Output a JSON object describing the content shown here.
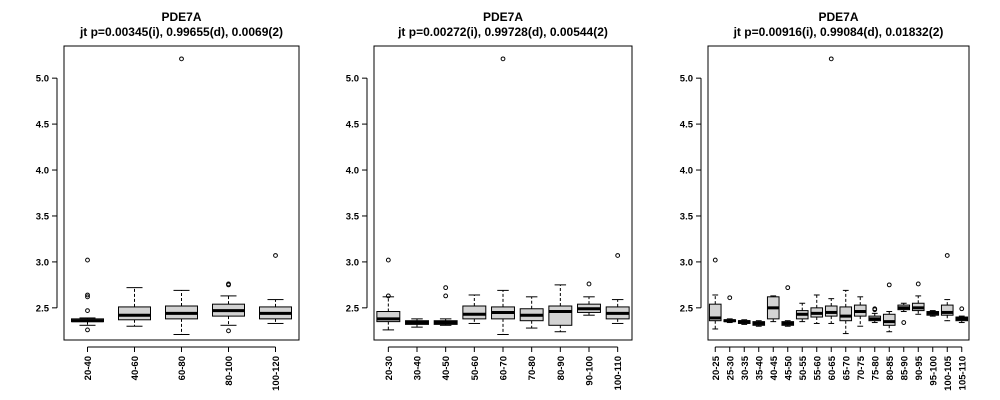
{
  "chart_data": [
    {
      "type": "box",
      "title": "PDE7A",
      "subtitle": "jt p=0.00345(i), 0.99655(d), 0.0069(2)",
      "ylim": [
        2.15,
        5.35
      ],
      "yticks": [
        "2.5",
        "3.0",
        "3.5",
        "4.0",
        "4.5",
        "5.0"
      ],
      "categories": [
        "20-40",
        "40-60",
        "60-80",
        "80-100",
        "100-120"
      ],
      "boxes": [
        {
          "whisker_low": 2.31,
          "q1": 2.35,
          "median": 2.36,
          "q3": 2.38,
          "whisker_high": 2.39,
          "outliers": [
            3.02,
            2.64,
            2.62,
            2.47,
            2.26
          ]
        },
        {
          "whisker_low": 2.3,
          "q1": 2.37,
          "median": 2.42,
          "q3": 2.51,
          "whisker_high": 2.72,
          "outliers": []
        },
        {
          "whisker_low": 2.21,
          "q1": 2.38,
          "median": 2.44,
          "q3": 2.52,
          "whisker_high": 2.69,
          "outliers": [
            5.21
          ]
        },
        {
          "whisker_low": 2.31,
          "q1": 2.41,
          "median": 2.47,
          "q3": 2.54,
          "whisker_high": 2.63,
          "outliers": [
            2.76,
            2.75,
            2.25
          ]
        },
        {
          "whisker_low": 2.33,
          "q1": 2.38,
          "median": 2.44,
          "q3": 2.51,
          "whisker_high": 2.59,
          "outliers": [
            3.07
          ]
        }
      ]
    },
    {
      "type": "box",
      "title": "PDE7A",
      "subtitle": "jt p=0.00272(i), 0.99728(d), 0.00544(2)",
      "ylim": [
        2.15,
        5.35
      ],
      "yticks": [
        "2.5",
        "3.0",
        "3.5",
        "4.0",
        "4.5",
        "5.0"
      ],
      "categories": [
        "20-30",
        "30-40",
        "40-50",
        "50-60",
        "60-70",
        "70-80",
        "80-90",
        "90-100",
        "100-110"
      ],
      "boxes": [
        {
          "whisker_low": 2.26,
          "q1": 2.35,
          "median": 2.38,
          "q3": 2.46,
          "whisker_high": 2.62,
          "outliers": [
            3.02,
            2.63
          ]
        },
        {
          "whisker_low": 2.29,
          "q1": 2.32,
          "median": 2.34,
          "q3": 2.36,
          "whisker_high": 2.38,
          "outliers": []
        },
        {
          "whisker_low": 2.31,
          "q1": 2.32,
          "median": 2.34,
          "q3": 2.36,
          "whisker_high": 2.38,
          "outliers": [
            2.72,
            2.63
          ]
        },
        {
          "whisker_low": 2.33,
          "q1": 2.38,
          "median": 2.43,
          "q3": 2.52,
          "whisker_high": 2.64,
          "outliers": []
        },
        {
          "whisker_low": 2.21,
          "q1": 2.38,
          "median": 2.45,
          "q3": 2.51,
          "whisker_high": 2.69,
          "outliers": [
            5.21
          ]
        },
        {
          "whisker_low": 2.28,
          "q1": 2.36,
          "median": 2.42,
          "q3": 2.49,
          "whisker_high": 2.62,
          "outliers": []
        },
        {
          "whisker_low": 2.24,
          "q1": 2.31,
          "median": 2.46,
          "q3": 2.52,
          "whisker_high": 2.75,
          "outliers": []
        },
        {
          "whisker_low": 2.42,
          "q1": 2.45,
          "median": 2.49,
          "q3": 2.54,
          "whisker_high": 2.62,
          "outliers": [
            2.76
          ]
        },
        {
          "whisker_low": 2.33,
          "q1": 2.38,
          "median": 2.44,
          "q3": 2.51,
          "whisker_high": 2.59,
          "outliers": [
            3.07
          ]
        }
      ]
    },
    {
      "type": "box",
      "title": "PDE7A",
      "subtitle": "jt p=0.00916(i), 0.99084(d), 0.01832(2)",
      "ylim": [
        2.15,
        5.35
      ],
      "yticks": [
        "2.5",
        "3.0",
        "3.5",
        "4.0",
        "4.5",
        "5.0"
      ],
      "categories": [
        "20-25",
        "25-30",
        "30-35",
        "35-40",
        "40-45",
        "45-50",
        "50-55",
        "55-60",
        "60-65",
        "65-70",
        "70-75",
        "75-80",
        "80-85",
        "85-90",
        "90-95",
        "95-100",
        "100-105",
        "105-110"
      ],
      "boxes": [
        {
          "whisker_low": 2.27,
          "q1": 2.36,
          "median": 2.39,
          "q3": 2.54,
          "whisker_high": 2.64,
          "outliers": [
            3.02
          ]
        },
        {
          "whisker_low": 2.34,
          "q1": 2.35,
          "median": 2.36,
          "q3": 2.37,
          "whisker_high": 2.38,
          "outliers": [
            2.61
          ]
        },
        {
          "whisker_low": 2.32,
          "q1": 2.33,
          "median": 2.35,
          "q3": 2.36,
          "whisker_high": 2.37,
          "outliers": []
        },
        {
          "whisker_low": 2.3,
          "q1": 2.31,
          "median": 2.33,
          "q3": 2.35,
          "whisker_high": 2.36,
          "outliers": []
        },
        {
          "whisker_low": 2.35,
          "q1": 2.38,
          "median": 2.5,
          "q3": 2.62,
          "whisker_high": 2.63,
          "outliers": []
        },
        {
          "whisker_low": 2.3,
          "q1": 2.31,
          "median": 2.33,
          "q3": 2.35,
          "whisker_high": 2.36,
          "outliers": [
            2.72
          ]
        },
        {
          "whisker_low": 2.35,
          "q1": 2.38,
          "median": 2.43,
          "q3": 2.47,
          "whisker_high": 2.55,
          "outliers": []
        },
        {
          "whisker_low": 2.33,
          "q1": 2.4,
          "median": 2.44,
          "q3": 2.5,
          "whisker_high": 2.64,
          "outliers": []
        },
        {
          "whisker_low": 2.33,
          "q1": 2.41,
          "median": 2.45,
          "q3": 2.52,
          "whisker_high": 2.6,
          "outliers": [
            5.21
          ]
        },
        {
          "whisker_low": 2.22,
          "q1": 2.36,
          "median": 2.41,
          "q3": 2.51,
          "whisker_high": 2.69,
          "outliers": []
        },
        {
          "whisker_low": 2.3,
          "q1": 2.41,
          "median": 2.46,
          "q3": 2.53,
          "whisker_high": 2.62,
          "outliers": []
        },
        {
          "whisker_low": 2.34,
          "q1": 2.36,
          "median": 2.38,
          "q3": 2.41,
          "whisker_high": 2.44,
          "outliers": [
            2.49,
            2.48
          ]
        },
        {
          "whisker_low": 2.24,
          "q1": 2.31,
          "median": 2.35,
          "q3": 2.43,
          "whisker_high": 2.46,
          "outliers": [
            2.75
          ]
        },
        {
          "whisker_low": 2.46,
          "q1": 2.48,
          "median": 2.5,
          "q3": 2.53,
          "whisker_high": 2.55,
          "outliers": [
            2.34
          ]
        },
        {
          "whisker_low": 2.43,
          "q1": 2.47,
          "median": 2.5,
          "q3": 2.55,
          "whisker_high": 2.63,
          "outliers": [
            2.76
          ]
        },
        {
          "whisker_low": 2.41,
          "q1": 2.42,
          "median": 2.44,
          "q3": 2.46,
          "whisker_high": 2.47,
          "outliers": []
        },
        {
          "whisker_low": 2.36,
          "q1": 2.42,
          "median": 2.45,
          "q3": 2.53,
          "whisker_high": 2.59,
          "outliers": [
            3.07
          ]
        },
        {
          "whisker_low": 2.34,
          "q1": 2.36,
          "median": 2.38,
          "q3": 2.4,
          "whisker_high": 2.41,
          "outliers": [
            2.49
          ]
        }
      ]
    }
  ],
  "colors": {
    "box_fill": "#d3d3d3",
    "stroke": "#000000",
    "background": "#ffffff"
  }
}
